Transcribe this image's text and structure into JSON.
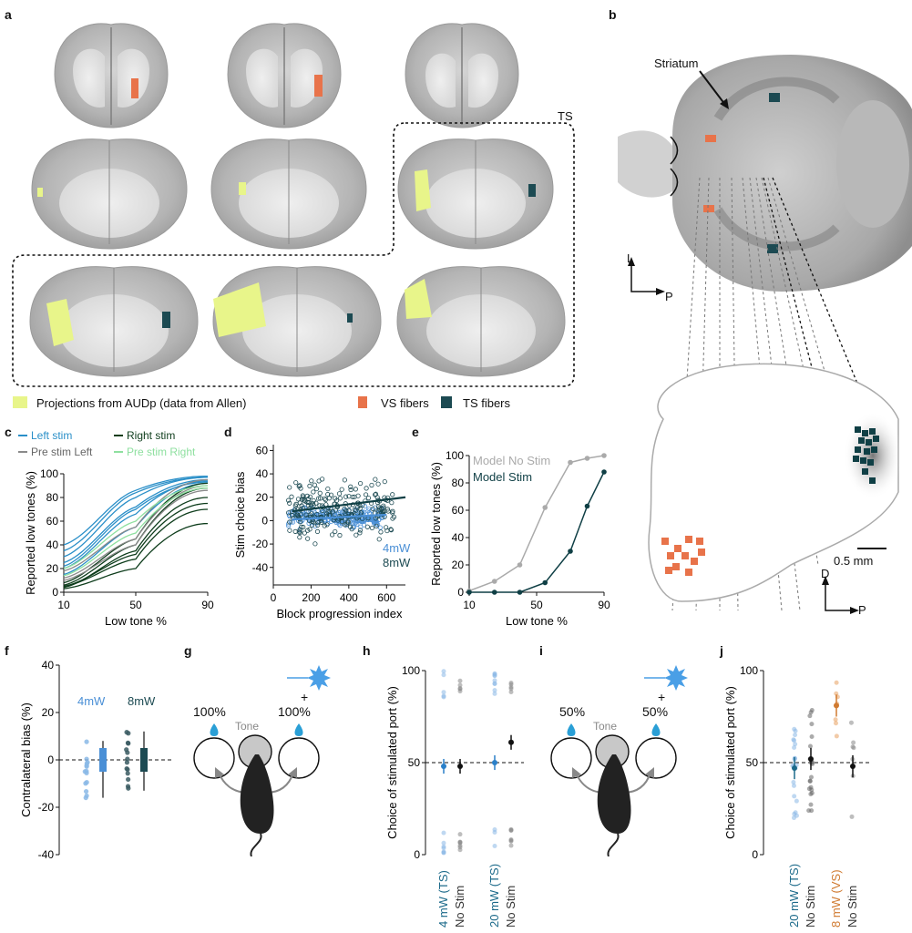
{
  "panels": {
    "a": "a",
    "b": "b",
    "c": "c",
    "d": "d",
    "e": "e",
    "f": "f",
    "g": "g",
    "h": "h",
    "i": "i",
    "j": "j"
  },
  "panel_a": {
    "ts_label": "TS",
    "legend": {
      "allen": "Projections from AUDp (data from Allen)",
      "vs": "VS fibers",
      "ts": "TS fibers"
    },
    "colors": {
      "allen": "#e8f58a",
      "vs": "#e8734a",
      "ts": "#1c4a52"
    }
  },
  "panel_b": {
    "striatum_label": "Striatum",
    "axis_L": "L",
    "axis_P": "P",
    "axis_D": "D",
    "axis_P2": "P",
    "scale": "0.5 mm"
  },
  "chart_data": [
    {
      "panel": "c",
      "type": "line",
      "xlabel": "Low tone %",
      "ylabel": "Reported low tones (%)",
      "xticks": [
        "10",
        "50",
        "90"
      ],
      "yticks": [
        "0",
        "20",
        "40",
        "60",
        "80",
        "100"
      ],
      "xlim": [
        10,
        90
      ],
      "ylim": [
        0,
        100
      ],
      "legend": [
        "Left stim",
        "Right stim",
        "Pre stim Left",
        "Pre stim Right"
      ],
      "colors": {
        "Left stim": "#2a8fc8",
        "Right stim": "#0e3d1c",
        "Pre stim Left": "#8a8a8a",
        "Pre stim Right": "#8fe0a0"
      },
      "series": [
        {
          "name": "Left stim",
          "curves": [
            [
              40,
              86,
              98
            ],
            [
              30,
              80,
              97
            ],
            [
              25,
              72,
              95
            ],
            [
              20,
              66,
              94
            ],
            [
              35,
              84,
              97
            ],
            [
              15,
              55,
              92
            ],
            [
              22,
              70,
              93
            ]
          ]
        },
        {
          "name": "Right stim",
          "curves": [
            [
              3,
              20,
              58
            ],
            [
              5,
              28,
              70
            ],
            [
              4,
              35,
              80
            ],
            [
              6,
              40,
              88
            ],
            [
              8,
              45,
              92
            ],
            [
              5,
              32,
              75
            ]
          ]
        },
        {
          "name": "Pre stim Left",
          "curves": [
            [
              18,
              55,
              95
            ],
            [
              12,
              45,
              90
            ],
            [
              10,
              40,
              86
            ]
          ]
        },
        {
          "name": "Pre stim Right",
          "curves": [
            [
              20,
              60,
              90
            ],
            [
              14,
              50,
              88
            ]
          ]
        }
      ]
    },
    {
      "panel": "d",
      "type": "scatter",
      "xlabel": "Block progression index",
      "ylabel": "Stim choice bias",
      "xticks": [
        "0",
        "200",
        "400",
        "600"
      ],
      "yticks": [
        "-40",
        "-20",
        "0",
        "20",
        "40",
        "60"
      ],
      "xlim": [
        0,
        700
      ],
      "ylim": [
        -55,
        65
      ],
      "legend": [
        "4mW",
        "8mW"
      ],
      "colors": {
        "4mW": "#4a8fd6",
        "8mW": "#1c4a52"
      },
      "fits": [
        {
          "name": "8mW",
          "x": [
            100,
            700
          ],
          "y": [
            8,
            20
          ]
        },
        {
          "name": "4mW",
          "x": [
            100,
            600
          ],
          "y": [
            1,
            5
          ]
        }
      ]
    },
    {
      "panel": "e",
      "type": "line",
      "xlabel": "Low tone %",
      "ylabel": "Reported low tones (%)",
      "xticks": [
        "10",
        "50",
        "90"
      ],
      "yticks": [
        "0",
        "20",
        "40",
        "60",
        "80",
        "100"
      ],
      "xlim": [
        10,
        90
      ],
      "ylim": [
        0,
        100
      ],
      "x": [
        10,
        25,
        40,
        55,
        70,
        80,
        90
      ],
      "series": [
        {
          "name": "Model No Stim",
          "color": "#aaaaaa",
          "values": [
            1,
            8,
            20,
            62,
            95,
            98,
            100
          ]
        },
        {
          "name": "Model Stim",
          "color": "#0f3f45",
          "values": [
            0,
            0,
            0,
            7,
            30,
            63,
            88
          ]
        }
      ]
    },
    {
      "panel": "f",
      "type": "box",
      "ylabel": "Contralateral bias (%)",
      "yticks": [
        "-40",
        "-20",
        "0",
        "20",
        "40"
      ],
      "ylim": [
        -40,
        40
      ],
      "legend": [
        "4mW",
        "8mW"
      ],
      "groups": [
        {
          "name": "4mW",
          "color": "#4a8fd6",
          "median": 0,
          "q1": -5,
          "q3": 5,
          "min": -16,
          "max": 8
        },
        {
          "name": "8mW",
          "color": "#1c4a52",
          "median": 0,
          "q1": -5,
          "q3": 5,
          "min": -13,
          "max": 12
        }
      ]
    },
    {
      "panel": "h",
      "type": "scatter",
      "ylabel": "Choice of stimulated port (%)",
      "yticks": [
        "0",
        "50",
        "100"
      ],
      "ylim": [
        0,
        100
      ],
      "categories": [
        "4 mW (TS)",
        "No Stim",
        "20 mW (TS)",
        "No Stim"
      ],
      "means": [
        48,
        48,
        50,
        61
      ]
    },
    {
      "panel": "j",
      "type": "scatter",
      "ylabel": "Choice of stimulated port (%)",
      "yticks": [
        "0",
        "50",
        "100"
      ],
      "ylim": [
        0,
        100
      ],
      "categories": [
        "20 mW (TS)",
        "No Stim",
        "8 mW  (VS)",
        "No Stim"
      ],
      "means": [
        47,
        52,
        81,
        48
      ]
    }
  ],
  "panel_g": {
    "left_reward": "100%",
    "right_reward": "100%",
    "plus": "+",
    "tone": "Tone"
  },
  "panel_i": {
    "left_reward": "50%",
    "right_reward": "50%",
    "plus": "+",
    "tone": "Tone"
  }
}
